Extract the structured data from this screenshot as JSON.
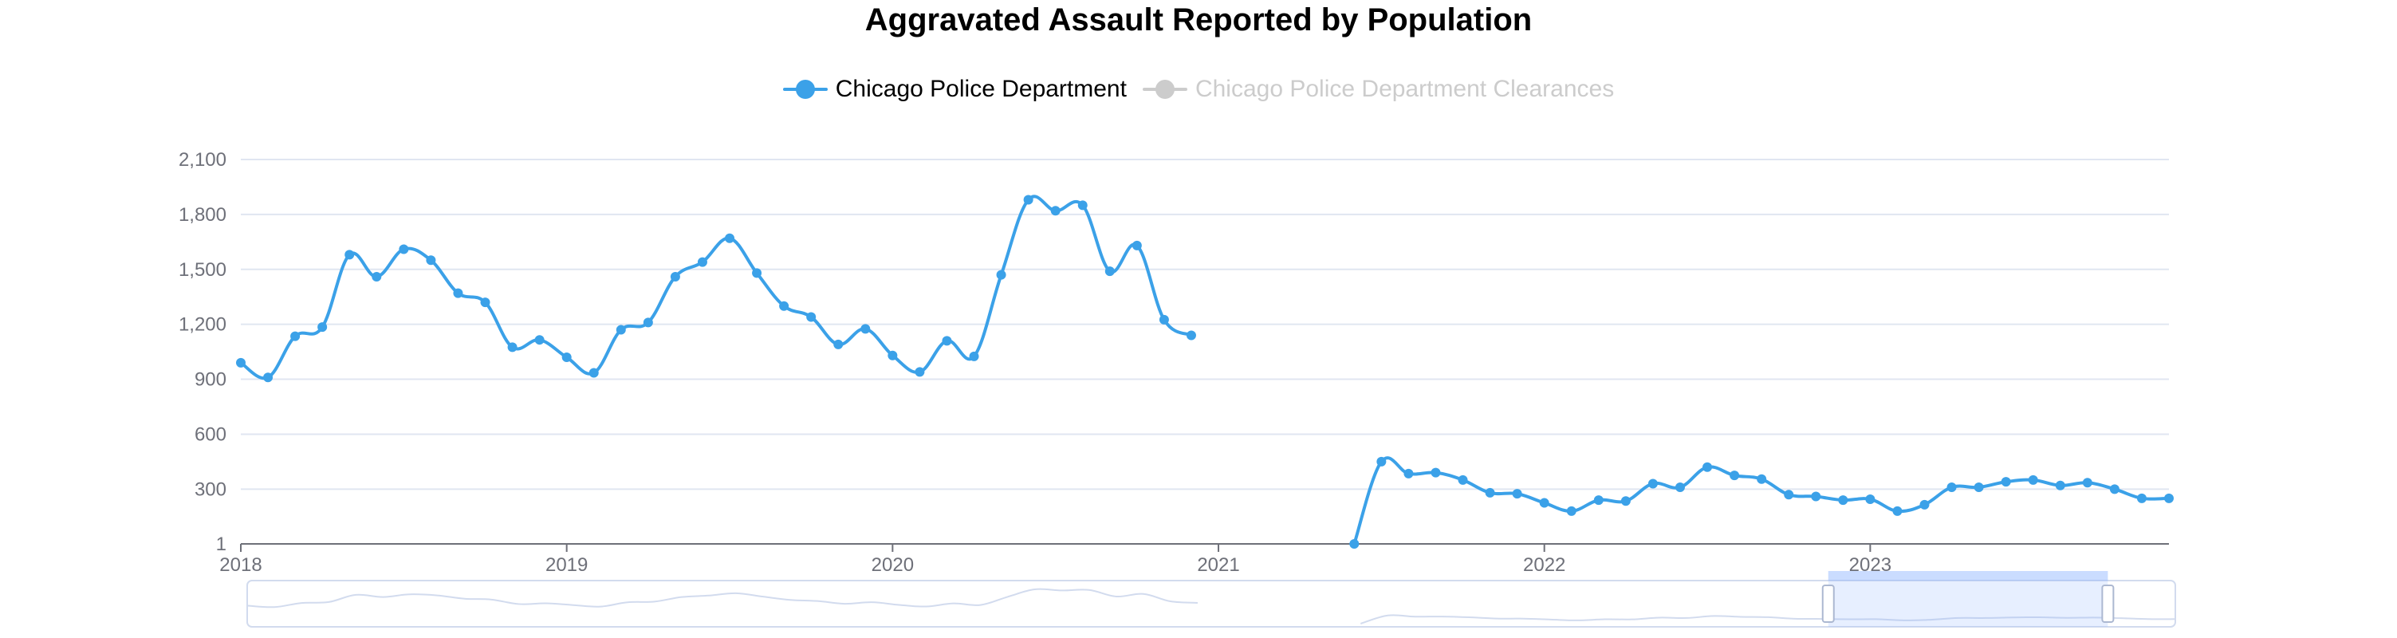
{
  "chart_data": {
    "type": "line",
    "title": "Aggravated Assault Reported by Population",
    "legend_position": "top-center",
    "grid": true,
    "y_ticks": [
      "1",
      "300",
      "600",
      "900",
      "1,200",
      "1,500",
      "1,800",
      "2,100"
    ],
    "x_ticks": [
      "2018",
      "2019",
      "2020",
      "2021",
      "2022",
      "2023"
    ],
    "ylim": [
      1,
      2100
    ],
    "xlim": [
      "2018-01",
      "2023-12"
    ],
    "series": [
      {
        "name": "Chicago Police Department",
        "color": "#3ba1e8",
        "active": true,
        "segments": [
          {
            "x": [
              "2018-01",
              "2018-02",
              "2018-03",
              "2018-04",
              "2018-05",
              "2018-06",
              "2018-07",
              "2018-08",
              "2018-09",
              "2018-10",
              "2018-11",
              "2018-12",
              "2019-01",
              "2019-02",
              "2019-03",
              "2019-04",
              "2019-05",
              "2019-06",
              "2019-07",
              "2019-08",
              "2019-09",
              "2019-10",
              "2019-11",
              "2019-12",
              "2020-01",
              "2020-02",
              "2020-03",
              "2020-04",
              "2020-05",
              "2020-06",
              "2020-07",
              "2020-08",
              "2020-09",
              "2020-10",
              "2020-11",
              "2020-12"
            ],
            "y": [
              990,
              910,
              1135,
              1185,
              1580,
              1460,
              1610,
              1550,
              1370,
              1320,
              1075,
              1115,
              1020,
              935,
              1170,
              1210,
              1460,
              1540,
              1670,
              1480,
              1300,
              1240,
              1090,
              1175,
              1030,
              940,
              1110,
              1025,
              1470,
              1880,
              1820,
              1850,
              1490,
              1630,
              1225,
              1140
            ]
          },
          {
            "x": [
              "2021-06",
              "2021-07",
              "2021-08",
              "2021-09",
              "2021-10",
              "2021-11",
              "2021-12",
              "2022-01",
              "2022-02",
              "2022-03",
              "2022-04",
              "2022-05",
              "2022-06",
              "2022-07",
              "2022-08",
              "2022-09",
              "2022-10",
              "2022-11",
              "2022-12",
              "2023-01",
              "2023-02",
              "2023-03",
              "2023-04",
              "2023-05",
              "2023-06",
              "2023-07",
              "2023-08",
              "2023-09",
              "2023-10",
              "2023-11",
              "2023-12"
            ],
            "y": [
              1,
              450,
              385,
              390,
              350,
              280,
              275,
              225,
              180,
              240,
              235,
              330,
              310,
              420,
              375,
              355,
              270,
              260,
              240,
              245,
              180,
              215,
              310,
              310,
              340,
              350,
              320,
              335,
              300,
              250,
              250
            ]
          }
        ]
      },
      {
        "name": "Chicago Police Department Clearances",
        "color": "#cccccc",
        "active": false
      }
    ],
    "data_zoom": {
      "start": 0.82,
      "end": 0.965
    }
  }
}
